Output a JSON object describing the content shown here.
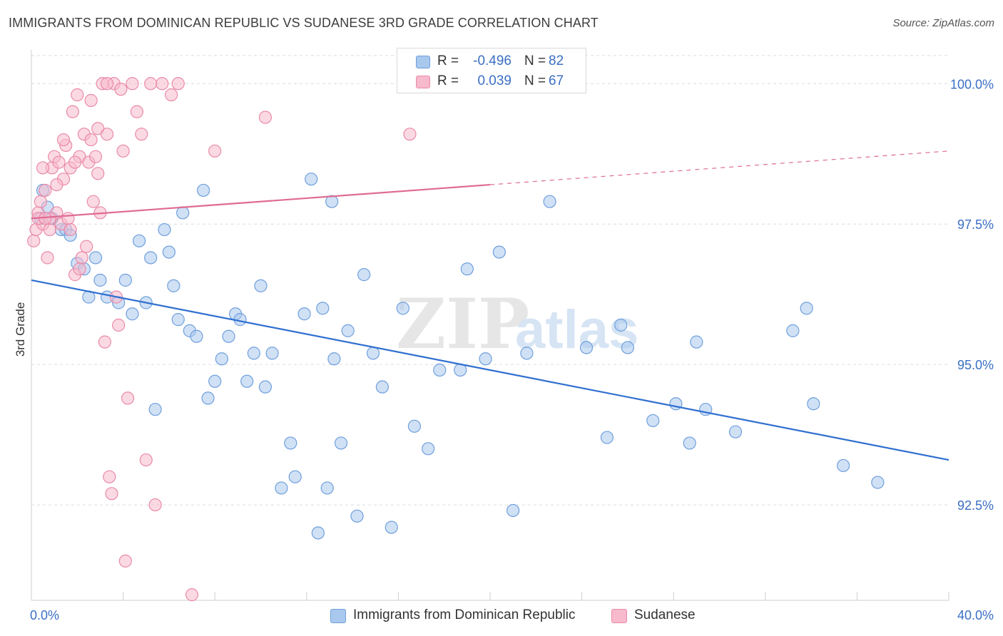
{
  "title": "IMMIGRANTS FROM DOMINICAN REPUBLIC VS SUDANESE 3RD GRADE CORRELATION CHART",
  "source": "Source: ZipAtlas.com",
  "watermark": {
    "zip": "ZIP",
    "atlas": "atlas"
  },
  "legend_top": [
    {
      "r_label": "R =",
      "r_value": "-0.496",
      "n_label": "N =",
      "n_value": "82"
    },
    {
      "r_label": "R =",
      "r_value": "0.039",
      "n_label": "N =",
      "n_value": "67"
    }
  ],
  "colors": {
    "blue_fill": "#a9c8ee",
    "blue_stroke": "#6f9fdc",
    "blue_line": "#2f6fd0",
    "pink_fill": "#f7b9cc",
    "pink_stroke": "#e98aa8",
    "pink_line": "#e06b92",
    "axis_text": "#3a6fc4",
    "grid": "#dcdcdc"
  },
  "chart_data": {
    "type": "scatter",
    "ylabel": "3rd Grade",
    "xlim": [
      0,
      40
    ],
    "ylim": [
      90.8,
      100.6
    ],
    "x_tick_labels": [
      {
        "value": 0,
        "label": "0.0%"
      },
      {
        "value": 40,
        "label": "40.0%"
      }
    ],
    "y_ticks": [
      {
        "value": 100.0,
        "label": "100.0%"
      },
      {
        "value": 97.5,
        "label": "97.5%"
      },
      {
        "value": 95.0,
        "label": "95.0%"
      },
      {
        "value": 92.5,
        "label": "92.5%"
      }
    ],
    "series": [
      {
        "name": "Immigrants from Dominican Republic",
        "color": "blue",
        "trend": {
          "x0": 0,
          "y0": 96.5,
          "x1": 40,
          "y1": 93.3,
          "solid_to": 40
        },
        "points": [
          [
            0.4,
            97.6
          ],
          [
            0.5,
            98.1
          ],
          [
            0.7,
            97.8
          ],
          [
            0.9,
            97.6
          ],
          [
            1.3,
            97.4
          ],
          [
            1.5,
            97.4
          ],
          [
            1.7,
            97.3
          ],
          [
            2.0,
            96.8
          ],
          [
            2.3,
            96.7
          ],
          [
            2.5,
            96.2
          ],
          [
            2.8,
            96.9
          ],
          [
            3.0,
            96.5
          ],
          [
            3.3,
            96.2
          ],
          [
            3.8,
            96.1
          ],
          [
            4.1,
            96.5
          ],
          [
            4.4,
            95.9
          ],
          [
            4.7,
            97.2
          ],
          [
            5.0,
            96.1
          ],
          [
            5.2,
            96.9
          ],
          [
            5.4,
            94.2
          ],
          [
            5.8,
            97.4
          ],
          [
            6.0,
            97.0
          ],
          [
            6.2,
            96.4
          ],
          [
            6.4,
            95.8
          ],
          [
            6.6,
            97.7
          ],
          [
            6.9,
            95.6
          ],
          [
            7.2,
            95.5
          ],
          [
            7.5,
            98.1
          ],
          [
            7.7,
            94.4
          ],
          [
            8.0,
            94.7
          ],
          [
            8.3,
            95.1
          ],
          [
            8.6,
            95.5
          ],
          [
            8.9,
            95.9
          ],
          [
            9.1,
            95.8
          ],
          [
            9.4,
            94.7
          ],
          [
            9.7,
            95.2
          ],
          [
            10.0,
            96.4
          ],
          [
            10.2,
            94.6
          ],
          [
            10.5,
            95.2
          ],
          [
            10.9,
            92.8
          ],
          [
            11.3,
            93.6
          ],
          [
            11.5,
            93.0
          ],
          [
            11.9,
            95.9
          ],
          [
            12.2,
            98.3
          ],
          [
            12.5,
            92.0
          ],
          [
            12.7,
            96.0
          ],
          [
            12.9,
            92.8
          ],
          [
            13.2,
            95.1
          ],
          [
            13.5,
            93.6
          ],
          [
            13.8,
            95.6
          ],
          [
            14.2,
            92.3
          ],
          [
            14.5,
            96.6
          ],
          [
            14.9,
            95.2
          ],
          [
            15.3,
            94.6
          ],
          [
            15.7,
            92.1
          ],
          [
            16.2,
            96.0
          ],
          [
            16.7,
            93.9
          ],
          [
            17.3,
            93.5
          ],
          [
            17.8,
            94.9
          ],
          [
            18.7,
            94.9
          ],
          [
            19.0,
            96.7
          ],
          [
            19.8,
            95.1
          ],
          [
            20.4,
            97.0
          ],
          [
            21.0,
            92.4
          ],
          [
            21.6,
            95.2
          ],
          [
            22.6,
            97.9
          ],
          [
            24.2,
            95.3
          ],
          [
            25.1,
            93.7
          ],
          [
            25.7,
            95.7
          ],
          [
            26.0,
            95.3
          ],
          [
            27.1,
            94.0
          ],
          [
            28.1,
            94.3
          ],
          [
            28.7,
            93.6
          ],
          [
            29.0,
            95.4
          ],
          [
            29.4,
            94.2
          ],
          [
            30.7,
            93.8
          ],
          [
            33.2,
            95.6
          ],
          [
            33.8,
            96.0
          ],
          [
            34.1,
            94.3
          ],
          [
            35.4,
            93.2
          ],
          [
            36.9,
            92.9
          ],
          [
            13.1,
            97.9
          ]
        ]
      },
      {
        "name": "Sudanese",
        "color": "pink",
        "trend": {
          "x0": 0,
          "y0": 97.6,
          "x1": 40,
          "y1": 98.8,
          "solid_to": 20
        },
        "points": [
          [
            0.1,
            97.2
          ],
          [
            0.2,
            97.4
          ],
          [
            0.3,
            97.7
          ],
          [
            0.4,
            97.9
          ],
          [
            0.5,
            97.5
          ],
          [
            0.6,
            98.1
          ],
          [
            0.7,
            96.9
          ],
          [
            0.8,
            97.4
          ],
          [
            0.9,
            98.5
          ],
          [
            1.0,
            98.7
          ],
          [
            1.1,
            97.7
          ],
          [
            1.2,
            98.6
          ],
          [
            1.3,
            97.5
          ],
          [
            1.4,
            98.3
          ],
          [
            1.5,
            98.9
          ],
          [
            1.6,
            97.6
          ],
          [
            1.7,
            98.5
          ],
          [
            1.8,
            99.5
          ],
          [
            1.9,
            96.6
          ],
          [
            2.0,
            99.8
          ],
          [
            2.1,
            98.7
          ],
          [
            2.2,
            96.9
          ],
          [
            2.3,
            99.1
          ],
          [
            2.4,
            97.1
          ],
          [
            2.5,
            98.6
          ],
          [
            2.6,
            99.0
          ],
          [
            2.7,
            97.9
          ],
          [
            2.8,
            98.7
          ],
          [
            2.9,
            99.2
          ],
          [
            3.0,
            97.7
          ],
          [
            3.1,
            100.0
          ],
          [
            3.2,
            95.4
          ],
          [
            3.3,
            99.1
          ],
          [
            3.4,
            93.0
          ],
          [
            3.5,
            92.7
          ],
          [
            3.6,
            100.0
          ],
          [
            3.7,
            96.2
          ],
          [
            3.8,
            95.7
          ],
          [
            3.9,
            99.9
          ],
          [
            4.0,
            98.8
          ],
          [
            4.1,
            91.5
          ],
          [
            4.2,
            94.4
          ],
          [
            4.4,
            100.0
          ],
          [
            4.6,
            99.5
          ],
          [
            4.8,
            99.1
          ],
          [
            5.0,
            93.3
          ],
          [
            5.2,
            100.0
          ],
          [
            5.4,
            92.5
          ],
          [
            5.7,
            100.0
          ],
          [
            6.1,
            99.8
          ],
          [
            6.4,
            100.0
          ],
          [
            7.0,
            90.9
          ],
          [
            8.0,
            98.8
          ],
          [
            10.2,
            99.4
          ],
          [
            16.5,
            99.1
          ],
          [
            0.5,
            98.5
          ],
          [
            0.8,
            97.6
          ],
          [
            1.1,
            98.2
          ],
          [
            1.4,
            99.0
          ],
          [
            1.7,
            97.4
          ],
          [
            2.1,
            96.7
          ],
          [
            2.6,
            99.7
          ],
          [
            2.9,
            98.4
          ],
          [
            3.3,
            100.0
          ],
          [
            0.3,
            97.6
          ],
          [
            0.6,
            97.6
          ],
          [
            1.9,
            98.6
          ]
        ]
      }
    ]
  }
}
